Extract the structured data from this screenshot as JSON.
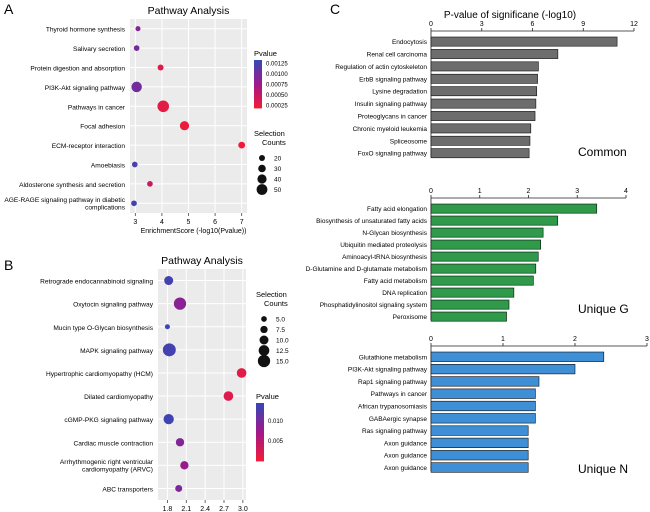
{
  "panel_letters": {
    "a": "A",
    "b": "B",
    "c": "C"
  },
  "colorbar_ticks": {
    "a": [
      "0.00125",
      "0.00100",
      "0.00075",
      "0.00050",
      "0.00025"
    ],
    "b": [
      "0.010",
      "0.005"
    ]
  },
  "chart_data": [
    {
      "type": "scatter",
      "panel": "A",
      "title": "Pathway Analysis",
      "xlabel": "EnrichmentScore (-log10(Pvalue))",
      "xlim": [
        2.8,
        7.2
      ],
      "xticks": [
        3,
        4,
        5,
        6,
        7
      ],
      "color_legend_title": "Pvalue",
      "size_legend_title": "Selection Counts",
      "size_legend_values": [
        20,
        30,
        40,
        50
      ],
      "grid": true,
      "points": [
        {
          "label": "Thyroid hormone synthesis",
          "x": 3.1,
          "size": 14,
          "pvalue": 0.0008
        },
        {
          "label": "Salivary secretion",
          "x": 3.05,
          "size": 18,
          "pvalue": 0.0009
        },
        {
          "label": "Protein digestion and absorption",
          "x": 3.95,
          "size": 20,
          "pvalue": 0.00011
        },
        {
          "label": "PI3K-Akt signaling pathway",
          "x": 3.05,
          "size": 48,
          "pvalue": 0.0009
        },
        {
          "label": "Pathways in cancer",
          "x": 4.05,
          "size": 55,
          "pvalue": 0.0001
        },
        {
          "label": "Focal adhesion",
          "x": 4.85,
          "size": 40,
          "pvalue": 1.5e-05
        },
        {
          "label": "ECM-receptor interaction",
          "x": 7.0,
          "size": 25,
          "pvalue": 1e-07
        },
        {
          "label": "Amoebiasis",
          "x": 2.98,
          "size": 18,
          "pvalue": 0.00115
        },
        {
          "label": "Aldosterone synthesis and secretion",
          "x": 3.55,
          "size": 18,
          "pvalue": 0.0003
        },
        {
          "label": "AGE-RAGE signaling pathway in diabetic complications",
          "x": 2.95,
          "size": 18,
          "pvalue": 0.0012
        }
      ]
    },
    {
      "type": "scatter",
      "panel": "B",
      "title": "Pathway Analysis",
      "xlabel": "EnrichmentScore (-log10(Pvalue))",
      "xlim": [
        1.65,
        3.05
      ],
      "xticks": [
        1.8,
        2.1,
        2.4,
        2.7,
        3.0
      ],
      "color_legend_title": "Pvalue",
      "size_legend_title": "Selection Counts",
      "size_legend_values": [
        5.0,
        7.5,
        10.0,
        12.5,
        15.0
      ],
      "grid": true,
      "points": [
        {
          "label": "Retrograde endocannabinoid signaling",
          "x": 1.82,
          "size": 10,
          "pvalue": 0.0148
        },
        {
          "label": "Oxytocin signaling pathway",
          "x": 2.0,
          "size": 15,
          "pvalue": 0.0095
        },
        {
          "label": "Mucin type O-Glycan biosynthesis",
          "x": 1.8,
          "size": 4,
          "pvalue": 0.0155
        },
        {
          "label": "MAPK signaling pathway",
          "x": 1.83,
          "size": 16,
          "pvalue": 0.0148
        },
        {
          "label": "Hypertrophic cardiomyopathy (HCM)",
          "x": 2.98,
          "size": 11,
          "pvalue": 0.001
        },
        {
          "label": "Dilated cardiomyopathy",
          "x": 2.77,
          "size": 11,
          "pvalue": 0.0017
        },
        {
          "label": "cGMP-PKG signaling pathway",
          "x": 1.82,
          "size": 12,
          "pvalue": 0.0151
        },
        {
          "label": "Cardiac muscle contraction",
          "x": 2.0,
          "size": 9,
          "pvalue": 0.01
        },
        {
          "label": "Arrhythmogenic right ventricular cardiomyopathy (ARVC)",
          "x": 2.07,
          "size": 9,
          "pvalue": 0.0085
        },
        {
          "label": "ABC transporters",
          "x": 1.98,
          "size": 7,
          "pvalue": 0.0105
        }
      ]
    },
    {
      "type": "bar",
      "orientation": "horizontal",
      "panel": "C",
      "title": "P-value of significane (-log10)",
      "group_label": "Common",
      "xlim": [
        0,
        12
      ],
      "xticks": [
        0,
        3,
        6,
        9,
        12
      ],
      "color": "#6d6d6d",
      "categories": [
        "Endocytosis",
        "Renal cell carcinoma",
        "Regulation of actin cytoskeleton",
        "ErbB signaling pathway",
        "Lysine degradation",
        "Insulin signaling pathway",
        "Proteoglycans in cancer",
        "Chronic myeloid leukemia",
        "Spliceosome",
        "FoxO signaling pathway"
      ],
      "values": [
        11.0,
        7.5,
        6.35,
        6.3,
        6.25,
        6.2,
        6.15,
        5.9,
        5.85,
        5.8
      ]
    },
    {
      "type": "bar",
      "orientation": "horizontal",
      "panel": "C",
      "group_label": "Unique G",
      "xlim": [
        0,
        4
      ],
      "xticks": [
        0,
        1,
        2,
        3,
        4
      ],
      "color": "#2e9a4a",
      "categories": [
        "Fatty acid elongation",
        "Biosynthesis of unsaturated fatty acids",
        "N-Glycan biosynthesis",
        "Ubiquitin mediated proteolysis",
        "Aminoacyl-tRNA biosynthesis",
        "D-Glutamine and D-glutamate metabolism",
        "Fatty acid metabolism",
        "DNA replication",
        "Phosphatidylinositol signaling system",
        "Peroxisome"
      ],
      "values": [
        3.4,
        2.6,
        2.3,
        2.25,
        2.2,
        2.15,
        2.1,
        1.7,
        1.6,
        1.55
      ]
    },
    {
      "type": "bar",
      "orientation": "horizontal",
      "panel": "C",
      "group_label": "Unique N",
      "xlim": [
        0,
        3
      ],
      "xticks": [
        0,
        1,
        2,
        3
      ],
      "color": "#3e8fd6",
      "categories": [
        "Glutathione metabolism",
        "PI3K-Akt signaling pathway",
        "Rap1 signaling pathway",
        "Pathways in cancer",
        "African trypanosomiasis",
        "GABAergic synapse",
        "Ras signaling pathway",
        "Axon guidance",
        "Axon guidance",
        "Axon guidance"
      ],
      "values": [
        2.4,
        2.0,
        1.5,
        1.45,
        1.45,
        1.45,
        1.35,
        1.35,
        1.35,
        1.35
      ]
    }
  ]
}
